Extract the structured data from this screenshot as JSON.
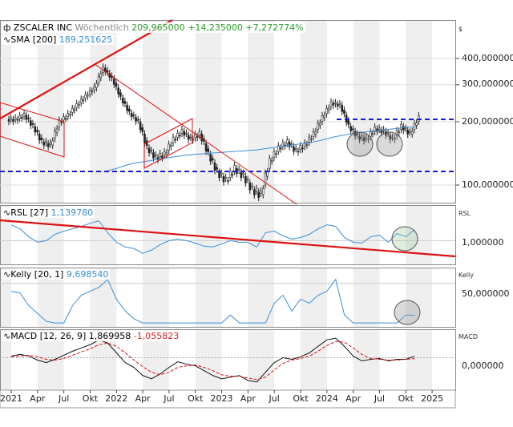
{
  "header": {
    "symbol": "ZSCALER INC",
    "interval": "Wöchentlich",
    "last": "209,965000",
    "change": "+14,235000",
    "change_pct": "+7,272774%"
  },
  "sma": {
    "label": "SMA",
    "param": "[200]",
    "value": "189,251625"
  },
  "rsl": {
    "label": "RSL",
    "param": "[27]",
    "value": "1,139780",
    "axis_title": "RSL",
    "tick": "1,000000"
  },
  "kelly": {
    "label": "Kelly",
    "param": "[20, 1]",
    "value": "9,698540",
    "axis_title": "Kelly",
    "tick": "50,000000"
  },
  "macd": {
    "label": "MACD",
    "param": "[12, 26, 9]",
    "value": "1,869958",
    "signal": "-1,055823",
    "axis_title": "MACD",
    "tick": "0,000000"
  },
  "price_axis": {
    "title": "$",
    "ticks": [
      "400,000000",
      "300,000000",
      "200,000000",
      "100,000000"
    ]
  },
  "x_ticks": [
    "2021",
    "Apr",
    "Jul",
    "Okt",
    "2022",
    "Apr",
    "Jul",
    "Okt",
    "2023",
    "Apr",
    "Jul",
    "Okt",
    "2024",
    "Apr",
    "Jul",
    "Okt",
    "2025"
  ],
  "colors": {
    "price_line": "#222222",
    "sma": "#3a8fd8",
    "trend": "#dd1111",
    "support": "#1a1acc",
    "indicator": "#3a8fd8"
  },
  "chart_data": {
    "type": "line",
    "title": "ZSCALER INC Wöchentlich",
    "x_unit": "months since Jan 2021",
    "price_scale": "log",
    "ylim": [
      70,
      480
    ],
    "close": [
      205,
      215,
      190,
      160,
      155,
      200,
      215,
      240,
      265,
      290,
      360,
      320,
      260,
      220,
      200,
      150,
      135,
      140,
      165,
      180,
      165,
      175,
      140,
      115,
      105,
      120,
      110,
      95,
      90,
      130,
      150,
      160,
      145,
      155,
      175,
      210,
      245,
      240,
      190,
      170,
      165,
      185,
      180,
      165,
      190,
      175,
      210
    ],
    "sma200": [
      null,
      null,
      null,
      null,
      null,
      null,
      null,
      null,
      null,
      null,
      null,
      117,
      120,
      124,
      127,
      129,
      131,
      133,
      135,
      137,
      139,
      140,
      141,
      142,
      143,
      144,
      145,
      146,
      147,
      149,
      151,
      153,
      155,
      157,
      159,
      162,
      166,
      170,
      173,
      176,
      178,
      180,
      182,
      184,
      186,
      188,
      189
    ],
    "support_levels": [
      205,
      118
    ],
    "rsl": [
      1.2,
      1.15,
      1.05,
      0.98,
      1.0,
      1.08,
      1.12,
      1.15,
      1.18,
      1.22,
      1.25,
      1.1,
      0.98,
      0.92,
      0.9,
      0.84,
      0.88,
      0.95,
      1.0,
      1.02,
      1.0,
      0.97,
      0.93,
      0.92,
      0.96,
      1.0,
      0.98,
      0.98,
      0.92,
      1.1,
      1.12,
      1.06,
      1.02,
      1.04,
      1.08,
      1.15,
      1.2,
      1.18,
      1.04,
      0.98,
      0.97,
      1.05,
      1.07,
      0.98,
      1.09,
      1.05,
      1.14
    ],
    "rsl_ylim": [
      0.7,
      1.45
    ],
    "kelly": [
      40,
      38,
      22,
      12,
      2,
      0,
      0,
      22,
      35,
      40,
      45,
      55,
      30,
      15,
      5,
      0,
      0,
      0,
      0,
      0,
      0,
      0,
      0,
      0,
      0,
      10,
      0,
      0,
      0,
      0,
      25,
      35,
      15,
      30,
      25,
      35,
      40,
      55,
      10,
      0,
      0,
      0,
      0,
      0,
      0,
      10,
      9.7
    ],
    "kelly_ylim": [
      -5,
      70
    ],
    "macd": [
      2,
      4,
      2,
      -3,
      -6,
      -2,
      3,
      8,
      12,
      16,
      22,
      18,
      6,
      -6,
      -12,
      -22,
      -26,
      -20,
      -12,
      -5,
      -8,
      -10,
      -16,
      -22,
      -26,
      -24,
      -22,
      -28,
      -30,
      -18,
      -6,
      0,
      -2,
      1,
      6,
      14,
      22,
      24,
      14,
      2,
      -4,
      -2,
      -1,
      -4,
      -2,
      -2,
      1.87
    ],
    "macd_signal": [
      1,
      2,
      3,
      1,
      -2,
      -3,
      -1,
      3,
      7,
      11,
      16,
      18,
      14,
      6,
      -3,
      -11,
      -18,
      -21,
      -18,
      -12,
      -10,
      -9,
      -12,
      -16,
      -21,
      -23,
      -23,
      -25,
      -27,
      -24,
      -15,
      -7,
      -3,
      -1,
      2,
      8,
      15,
      20,
      19,
      12,
      4,
      -1,
      -2,
      -3,
      -3,
      -2,
      -1.06
    ],
    "macd_ylim": [
      -40,
      35
    ]
  }
}
